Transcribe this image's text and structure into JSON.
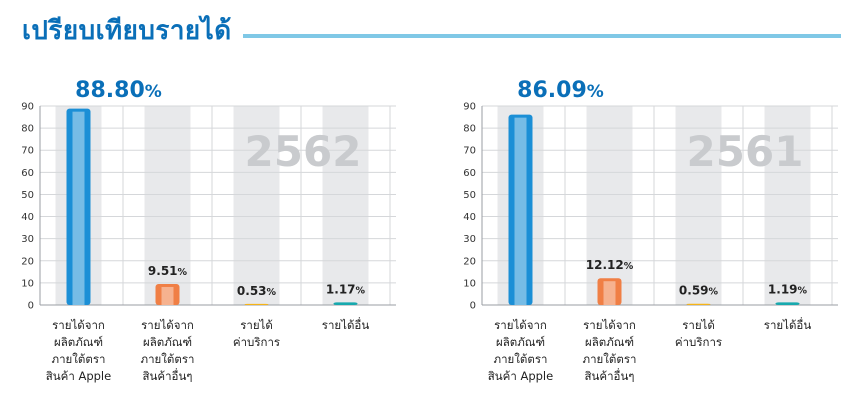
{
  "page": {
    "title": "เปรียบเทียบรายได้"
  },
  "chart_data": [
    {
      "type": "bar",
      "watermark": "2562",
      "headline": "88.80%",
      "ylim": [
        0,
        90
      ],
      "yticks": [
        0,
        10,
        20,
        30,
        40,
        50,
        60,
        70,
        80,
        90
      ],
      "grid": true,
      "categories": [
        [
          "รายได้จาก",
          "ผลิตภัณฑ์",
          "ภายใต้ตรา",
          "สินค้า Apple"
        ],
        [
          "รายได้จาก",
          "ผลิตภัณฑ์",
          "ภายใต้ตรา",
          "สินค้าอื่นๆ"
        ],
        [
          "รายได้",
          "ค่าบริการ"
        ],
        [
          "รายได้อื่น"
        ]
      ],
      "values": [
        88.8,
        9.51,
        0.53,
        1.17
      ],
      "data_labels": [
        "",
        "9.51%",
        "0.53%",
        "1.17%"
      ],
      "colors": [
        "#1b8fd6",
        "#f07f45",
        "#f6b417",
        "#17a9ae"
      ]
    },
    {
      "type": "bar",
      "watermark": "2561",
      "headline": "86.09%",
      "ylim": [
        0,
        90
      ],
      "yticks": [
        0,
        10,
        20,
        30,
        40,
        50,
        60,
        70,
        80,
        90
      ],
      "grid": true,
      "categories": [
        [
          "รายได้จาก",
          "ผลิตภัณฑ์",
          "ภายใต้ตรา",
          "สินค้า Apple"
        ],
        [
          "รายได้จาก",
          "ผลิตภัณฑ์",
          "ภายใต้ตรา",
          "สินค้าอื่นๆ"
        ],
        [
          "รายได้",
          "ค่าบริการ"
        ],
        [
          "รายได้อื่น"
        ]
      ],
      "values": [
        86.09,
        12.12,
        0.59,
        1.19
      ],
      "data_labels": [
        "",
        "12.12%",
        "0.59%",
        "1.19%"
      ],
      "colors": [
        "#1b8fd6",
        "#f07f45",
        "#f6b417",
        "#17a9ae"
      ]
    }
  ]
}
